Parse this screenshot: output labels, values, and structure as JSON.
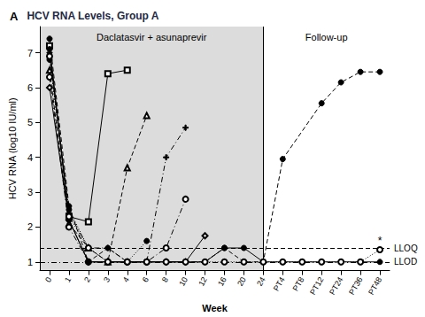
{
  "chart_data": {
    "type": "line",
    "panel": "A",
    "title": "HCV RNA Levels, Group A",
    "xlabel": "Week",
    "ylabel": "HCV RNA (log10 IU/ml)",
    "categories": [
      "0",
      "1",
      "2",
      "3",
      "4",
      "6",
      "8",
      "10",
      "12",
      "16",
      "20",
      "24",
      "PT4",
      "PT8",
      "PT12",
      "PT24",
      "PT36",
      "PT48"
    ],
    "ylim": [
      0.75,
      7.75
    ],
    "yticks": [
      1,
      2,
      3,
      4,
      5,
      6,
      7
    ],
    "grid": false,
    "phases": [
      {
        "label": "Daclatasvir + asunaprevir",
        "from": "0",
        "to": "24"
      },
      {
        "label": "Follow-up",
        "from": "24",
        "to": "PT48"
      }
    ],
    "reference_lines": [
      {
        "label": "LLOQ",
        "value": 1.4,
        "line_style": "dashed"
      },
      {
        "label": "LLOD",
        "value": 1.0,
        "line_style": "dashdot"
      }
    ],
    "annotations": [
      {
        "text": "*",
        "x": "PT48",
        "y": 1.6
      }
    ],
    "series": [
      {
        "color": "#000000",
        "marker": "open_square",
        "line_style": "solid",
        "values": [
          7.2,
          2.3,
          2.15,
          6.4,
          6.5,
          null,
          null,
          null,
          null,
          null,
          null,
          null,
          null,
          null,
          null,
          null,
          null,
          null
        ]
      },
      {
        "color": "#000000",
        "marker": "open_triangle",
        "line_style": "dashed",
        "values": [
          6.5,
          2.1,
          1.4,
          1.0,
          3.7,
          5.2,
          null,
          null,
          null,
          null,
          null,
          null,
          null,
          null,
          null,
          null,
          null,
          null
        ]
      },
      {
        "color": "#000000",
        "marker": "plus",
        "line_style": "dashdot",
        "values": [
          7.0,
          2.4,
          1.4,
          1.4,
          1.0,
          1.0,
          4.0,
          4.85,
          null,
          null,
          null,
          null,
          null,
          null,
          null,
          null,
          null,
          null
        ]
      },
      {
        "color": "#000000",
        "marker": "open_circle",
        "line_style": "dashdot",
        "values": [
          6.3,
          2.0,
          1.0,
          1.0,
          1.0,
          1.0,
          1.4,
          2.8,
          null,
          null,
          null,
          null,
          null,
          null,
          null,
          null,
          null,
          null
        ]
      },
      {
        "color": "#000000",
        "marker": "open_diamond",
        "line_style": "solid",
        "values": [
          6.0,
          2.2,
          1.0,
          1.0,
          1.0,
          1.0,
          1.0,
          1.0,
          1.75,
          null,
          null,
          null,
          null,
          null,
          null,
          null,
          null,
          null
        ]
      },
      {
        "color": "#000000",
        "marker": "circle",
        "line_style": "dotted",
        "values": [
          6.8,
          2.5,
          1.4,
          1.0,
          1.0,
          1.6,
          null,
          null,
          null,
          null,
          null,
          null,
          null,
          null,
          null,
          null,
          null,
          null
        ]
      },
      {
        "color": "#000000",
        "marker": "circle",
        "line_style": "dashed",
        "values": [
          7.4,
          2.6,
          1.0,
          1.4,
          1.0,
          1.0,
          1.0,
          1.0,
          1.0,
          1.4,
          1.0,
          1.0,
          3.95,
          null,
          5.55,
          6.15,
          6.45,
          6.45
        ]
      },
      {
        "color": "#000000",
        "marker": "circle",
        "line_style": "solid",
        "values": [
          7.1,
          2.2,
          1.0,
          1.0,
          1.0,
          1.0,
          1.0,
          1.0,
          1.0,
          1.4,
          1.4,
          1.0,
          1.0,
          1.0,
          1.0,
          1.0,
          1.0,
          1.0
        ]
      },
      {
        "color": "#000000",
        "marker": "open_circle",
        "line_style": "dotted",
        "values": [
          6.9,
          2.3,
          1.4,
          1.0,
          1.0,
          1.0,
          1.0,
          1.0,
          1.0,
          1.0,
          1.0,
          1.0,
          1.0,
          1.0,
          1.0,
          1.0,
          1.0,
          1.35
        ]
      }
    ]
  }
}
